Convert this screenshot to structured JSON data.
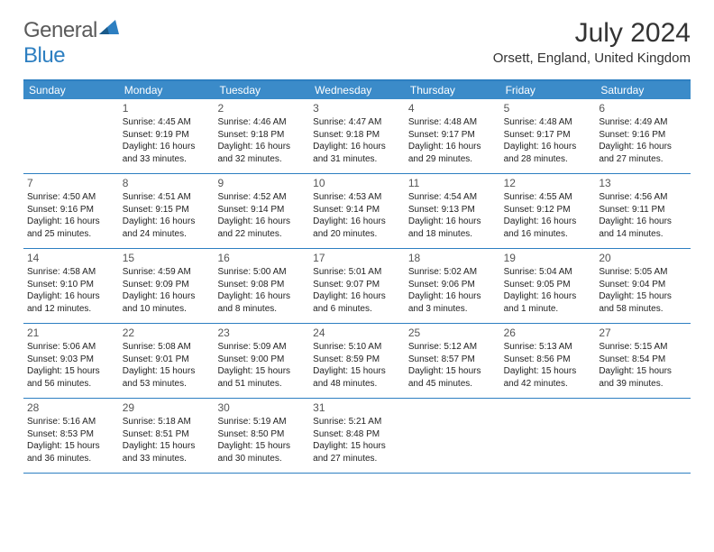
{
  "logo": {
    "general": "General",
    "blue": "Blue"
  },
  "title": "July 2024",
  "location": "Orsett, England, United Kingdom",
  "weekdays": [
    "Sunday",
    "Monday",
    "Tuesday",
    "Wednesday",
    "Thursday",
    "Friday",
    "Saturday"
  ],
  "colors": {
    "header_bg": "#3b8bc9",
    "border": "#2d7fc1",
    "text": "#222222",
    "logo_gray": "#5a5a5a",
    "logo_blue": "#2d7fc1"
  },
  "weeks": [
    [
      {
        "num": "",
        "lines": []
      },
      {
        "num": "1",
        "lines": [
          "Sunrise: 4:45 AM",
          "Sunset: 9:19 PM",
          "Daylight: 16 hours",
          "and 33 minutes."
        ]
      },
      {
        "num": "2",
        "lines": [
          "Sunrise: 4:46 AM",
          "Sunset: 9:18 PM",
          "Daylight: 16 hours",
          "and 32 minutes."
        ]
      },
      {
        "num": "3",
        "lines": [
          "Sunrise: 4:47 AM",
          "Sunset: 9:18 PM",
          "Daylight: 16 hours",
          "and 31 minutes."
        ]
      },
      {
        "num": "4",
        "lines": [
          "Sunrise: 4:48 AM",
          "Sunset: 9:17 PM",
          "Daylight: 16 hours",
          "and 29 minutes."
        ]
      },
      {
        "num": "5",
        "lines": [
          "Sunrise: 4:48 AM",
          "Sunset: 9:17 PM",
          "Daylight: 16 hours",
          "and 28 minutes."
        ]
      },
      {
        "num": "6",
        "lines": [
          "Sunrise: 4:49 AM",
          "Sunset: 9:16 PM",
          "Daylight: 16 hours",
          "and 27 minutes."
        ]
      }
    ],
    [
      {
        "num": "7",
        "lines": [
          "Sunrise: 4:50 AM",
          "Sunset: 9:16 PM",
          "Daylight: 16 hours",
          "and 25 minutes."
        ]
      },
      {
        "num": "8",
        "lines": [
          "Sunrise: 4:51 AM",
          "Sunset: 9:15 PM",
          "Daylight: 16 hours",
          "and 24 minutes."
        ]
      },
      {
        "num": "9",
        "lines": [
          "Sunrise: 4:52 AM",
          "Sunset: 9:14 PM",
          "Daylight: 16 hours",
          "and 22 minutes."
        ]
      },
      {
        "num": "10",
        "lines": [
          "Sunrise: 4:53 AM",
          "Sunset: 9:14 PM",
          "Daylight: 16 hours",
          "and 20 minutes."
        ]
      },
      {
        "num": "11",
        "lines": [
          "Sunrise: 4:54 AM",
          "Sunset: 9:13 PM",
          "Daylight: 16 hours",
          "and 18 minutes."
        ]
      },
      {
        "num": "12",
        "lines": [
          "Sunrise: 4:55 AM",
          "Sunset: 9:12 PM",
          "Daylight: 16 hours",
          "and 16 minutes."
        ]
      },
      {
        "num": "13",
        "lines": [
          "Sunrise: 4:56 AM",
          "Sunset: 9:11 PM",
          "Daylight: 16 hours",
          "and 14 minutes."
        ]
      }
    ],
    [
      {
        "num": "14",
        "lines": [
          "Sunrise: 4:58 AM",
          "Sunset: 9:10 PM",
          "Daylight: 16 hours",
          "and 12 minutes."
        ]
      },
      {
        "num": "15",
        "lines": [
          "Sunrise: 4:59 AM",
          "Sunset: 9:09 PM",
          "Daylight: 16 hours",
          "and 10 minutes."
        ]
      },
      {
        "num": "16",
        "lines": [
          "Sunrise: 5:00 AM",
          "Sunset: 9:08 PM",
          "Daylight: 16 hours",
          "and 8 minutes."
        ]
      },
      {
        "num": "17",
        "lines": [
          "Sunrise: 5:01 AM",
          "Sunset: 9:07 PM",
          "Daylight: 16 hours",
          "and 6 minutes."
        ]
      },
      {
        "num": "18",
        "lines": [
          "Sunrise: 5:02 AM",
          "Sunset: 9:06 PM",
          "Daylight: 16 hours",
          "and 3 minutes."
        ]
      },
      {
        "num": "19",
        "lines": [
          "Sunrise: 5:04 AM",
          "Sunset: 9:05 PM",
          "Daylight: 16 hours",
          "and 1 minute."
        ]
      },
      {
        "num": "20",
        "lines": [
          "Sunrise: 5:05 AM",
          "Sunset: 9:04 PM",
          "Daylight: 15 hours",
          "and 58 minutes."
        ]
      }
    ],
    [
      {
        "num": "21",
        "lines": [
          "Sunrise: 5:06 AM",
          "Sunset: 9:03 PM",
          "Daylight: 15 hours",
          "and 56 minutes."
        ]
      },
      {
        "num": "22",
        "lines": [
          "Sunrise: 5:08 AM",
          "Sunset: 9:01 PM",
          "Daylight: 15 hours",
          "and 53 minutes."
        ]
      },
      {
        "num": "23",
        "lines": [
          "Sunrise: 5:09 AM",
          "Sunset: 9:00 PM",
          "Daylight: 15 hours",
          "and 51 minutes."
        ]
      },
      {
        "num": "24",
        "lines": [
          "Sunrise: 5:10 AM",
          "Sunset: 8:59 PM",
          "Daylight: 15 hours",
          "and 48 minutes."
        ]
      },
      {
        "num": "25",
        "lines": [
          "Sunrise: 5:12 AM",
          "Sunset: 8:57 PM",
          "Daylight: 15 hours",
          "and 45 minutes."
        ]
      },
      {
        "num": "26",
        "lines": [
          "Sunrise: 5:13 AM",
          "Sunset: 8:56 PM",
          "Daylight: 15 hours",
          "and 42 minutes."
        ]
      },
      {
        "num": "27",
        "lines": [
          "Sunrise: 5:15 AM",
          "Sunset: 8:54 PM",
          "Daylight: 15 hours",
          "and 39 minutes."
        ]
      }
    ],
    [
      {
        "num": "28",
        "lines": [
          "Sunrise: 5:16 AM",
          "Sunset: 8:53 PM",
          "Daylight: 15 hours",
          "and 36 minutes."
        ]
      },
      {
        "num": "29",
        "lines": [
          "Sunrise: 5:18 AM",
          "Sunset: 8:51 PM",
          "Daylight: 15 hours",
          "and 33 minutes."
        ]
      },
      {
        "num": "30",
        "lines": [
          "Sunrise: 5:19 AM",
          "Sunset: 8:50 PM",
          "Daylight: 15 hours",
          "and 30 minutes."
        ]
      },
      {
        "num": "31",
        "lines": [
          "Sunrise: 5:21 AM",
          "Sunset: 8:48 PM",
          "Daylight: 15 hours",
          "and 27 minutes."
        ]
      },
      {
        "num": "",
        "lines": []
      },
      {
        "num": "",
        "lines": []
      },
      {
        "num": "",
        "lines": []
      }
    ]
  ]
}
